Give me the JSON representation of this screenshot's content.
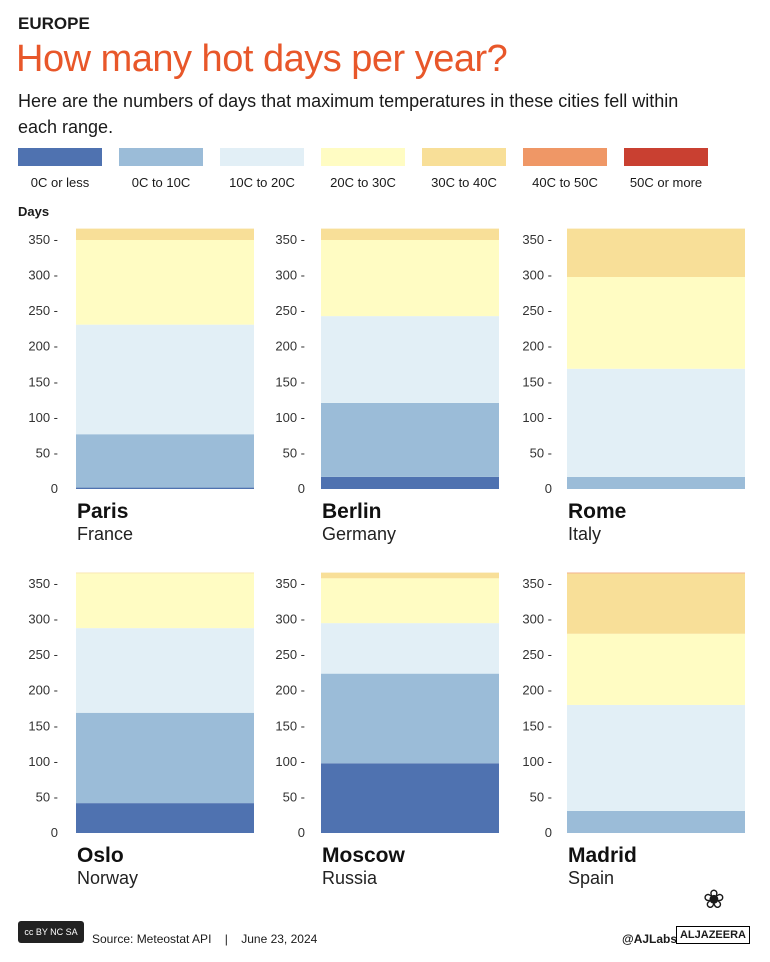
{
  "kicker": "EUROPE",
  "title": "How many hot days per year?",
  "subtitle": "Here are the numbers of days that maximum temperatures in these cities fell within each range.",
  "footer": {
    "source": "Source:  Meteostat API",
    "sep": "|",
    "date": "June 23, 2024",
    "handle": "@AJLabs",
    "brand": "ALJAZEERA",
    "license": "cc BY NC SA"
  },
  "chart_data": {
    "type": "bar",
    "stacked": true,
    "ylabel": "Days",
    "ylim": [
      0,
      366
    ],
    "yticks": [
      0,
      50,
      100,
      150,
      200,
      250,
      300,
      350
    ],
    "series": [
      {
        "name": "0C or less",
        "color": "#4f72b0"
      },
      {
        "name": "0C to 10C",
        "color": "#9bbcd8"
      },
      {
        "name": "10C to 20C",
        "color": "#e2eff6"
      },
      {
        "name": "20C to 30C",
        "color": "#fffcc3"
      },
      {
        "name": "30C to 40C",
        "color": "#f8df98"
      },
      {
        "name": "40C to 50C",
        "color": "#ef9766"
      },
      {
        "name": "50C or more",
        "color": "#c94031"
      }
    ],
    "cities": [
      {
        "city": "Paris",
        "country": "France",
        "values": [
          2,
          75,
          154,
          119,
          16,
          0,
          0
        ]
      },
      {
        "city": "Berlin",
        "country": "Germany",
        "values": [
          17,
          104,
          122,
          107,
          16,
          0,
          0
        ]
      },
      {
        "city": "Rome",
        "country": "Italy",
        "values": [
          0,
          17,
          152,
          129,
          68,
          0,
          0
        ]
      },
      {
        "city": "Oslo",
        "country": "Norway",
        "values": [
          42,
          127,
          119,
          77,
          1,
          0,
          0
        ]
      },
      {
        "city": "Moscow",
        "country": "Russia",
        "values": [
          98,
          126,
          71,
          63,
          8,
          0,
          0
        ]
      },
      {
        "city": "Madrid",
        "country": "Spain",
        "values": [
          0,
          31,
          149,
          100,
          85,
          1,
          0
        ]
      }
    ]
  }
}
